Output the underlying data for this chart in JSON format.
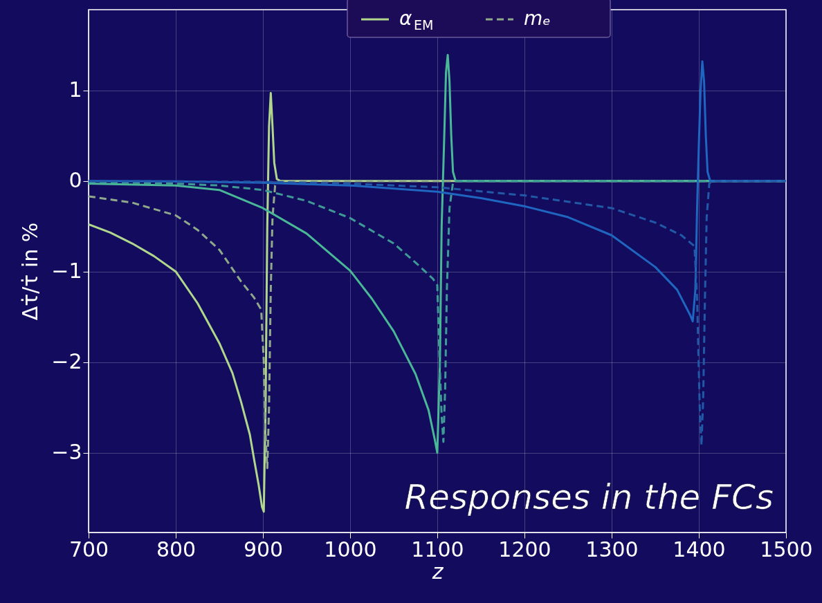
{
  "chart_data": {
    "type": "line",
    "xlabel": "z",
    "ylabel": "Δτ̇/τ̇ in %",
    "xlim": [
      700,
      1500
    ],
    "xticks": [
      700,
      800,
      900,
      1000,
      1100,
      1200,
      1300,
      1400,
      1500
    ],
    "ylim": [
      -3.88,
      1.89
    ],
    "yticks": [
      -3,
      -2,
      -1,
      0,
      1
    ],
    "grid": true,
    "legend": "top",
    "annotations": [
      "Responses in the FCs"
    ],
    "series": [
      {
        "name": "α$_{EM}$",
        "color": "#b0d78c",
        "line_style": "solid",
        "x": [
          700,
          725,
          750,
          775,
          800,
          825,
          850,
          865,
          875,
          885,
          890,
          895,
          899,
          901,
          903,
          905,
          907,
          909,
          911,
          913,
          916,
          920,
          1000,
          1500
        ],
        "values": [
          -0.48,
          -0.57,
          -0.69,
          -0.83,
          -1.0,
          -1.35,
          -1.79,
          -2.12,
          -2.44,
          -2.8,
          -3.08,
          -3.35,
          -3.6,
          -3.65,
          -2.5,
          -0.5,
          0.6,
          0.97,
          0.6,
          0.2,
          0.02,
          0,
          0,
          0
        ]
      },
      {
        "name": "mₑ",
        "color": "#8fa98a",
        "line_style": "dashed",
        "x": [
          700,
          750,
          800,
          825,
          850,
          875,
          890,
          898,
          901,
          903,
          905,
          907,
          909,
          911,
          914,
          920,
          1500
        ],
        "values": [
          -0.17,
          -0.24,
          -0.38,
          -0.54,
          -0.76,
          -1.11,
          -1.29,
          -1.42,
          -2.0,
          -2.8,
          -3.17,
          -2.5,
          -1.2,
          -0.4,
          -0.05,
          0,
          0
        ]
      },
      {
        "color": "#4ab896",
        "line_style": "solid",
        "x": [
          700,
          800,
          850,
          900,
          950,
          1000,
          1025,
          1050,
          1075,
          1090,
          1097,
          1100,
          1103,
          1105,
          1108,
          1110,
          1112,
          1114,
          1116,
          1118,
          1121,
          1500
        ],
        "values": [
          -0.03,
          -0.05,
          -0.1,
          -0.3,
          -0.58,
          -0.99,
          -1.3,
          -1.66,
          -2.13,
          -2.53,
          -2.85,
          -3.0,
          -2.0,
          -0.5,
          0.5,
          1.2,
          1.39,
          1.1,
          0.5,
          0.1,
          0,
          0
        ]
      },
      {
        "color": "#3f9a96",
        "line_style": "dashed",
        "x": [
          700,
          800,
          850,
          900,
          950,
          1000,
          1050,
          1075,
          1095,
          1100,
          1102,
          1105,
          1107,
          1109,
          1111,
          1114,
          1118,
          1122,
          1500
        ],
        "values": [
          -0.01,
          -0.03,
          -0.05,
          -0.1,
          -0.22,
          -0.41,
          -0.69,
          -0.9,
          -1.08,
          -1.15,
          -1.8,
          -2.6,
          -2.88,
          -2.3,
          -1.2,
          -0.3,
          -0.02,
          0,
          0
        ]
      },
      {
        "color": "#1f66c0",
        "line_style": "solid",
        "x": [
          700,
          800,
          900,
          1000,
          1100,
          1150,
          1200,
          1250,
          1300,
          1350,
          1375,
          1390,
          1393,
          1396,
          1398,
          1400,
          1402,
          1404,
          1406,
          1408,
          1410,
          1413,
          1500
        ],
        "values": [
          0,
          -0.005,
          -0.02,
          -0.05,
          -0.12,
          -0.19,
          -0.28,
          -0.4,
          -0.6,
          -0.95,
          -1.2,
          -1.48,
          -1.55,
          -1.2,
          -0.3,
          0.4,
          1.0,
          1.32,
          1.1,
          0.5,
          0.1,
          0,
          0
        ]
      },
      {
        "color": "#2158a8",
        "line_style": "dashed",
        "x": [
          700,
          900,
          1000,
          1100,
          1200,
          1300,
          1350,
          1380,
          1395,
          1398,
          1401,
          1403,
          1405,
          1407,
          1409,
          1412,
          1415,
          1500
        ],
        "values": [
          0,
          -0.01,
          -0.03,
          -0.07,
          -0.16,
          -0.3,
          -0.46,
          -0.6,
          -0.72,
          -1.3,
          -2.5,
          -2.92,
          -2.4,
          -1.3,
          -0.4,
          -0.03,
          0,
          0
        ]
      }
    ]
  }
}
